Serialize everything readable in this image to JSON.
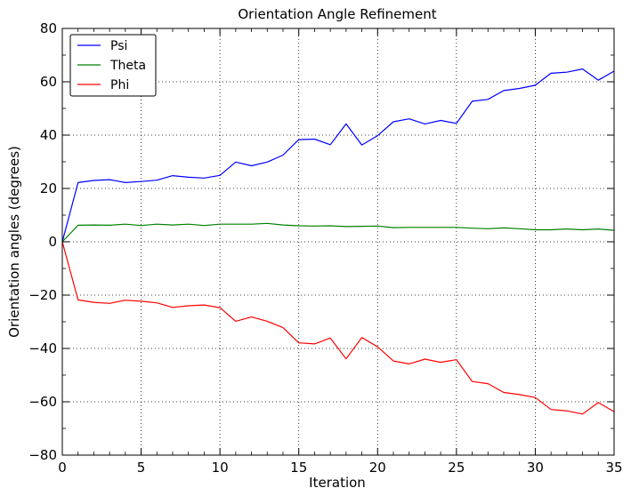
{
  "chart_data": {
    "type": "line",
    "title": "Orientation Angle Refinement",
    "xlabel": "Iteration",
    "ylabel": "Orientation angles (degrees)",
    "xlim": [
      0,
      35
    ],
    "ylim": [
      -80,
      80
    ],
    "xticks": [
      0,
      5,
      10,
      15,
      20,
      25,
      30,
      35
    ],
    "yticks": [
      -80,
      -60,
      -40,
      -20,
      0,
      20,
      40,
      60,
      80
    ],
    "grid": true,
    "legend_position": "top-left",
    "x": [
      0,
      1,
      2,
      3,
      4,
      5,
      6,
      7,
      8,
      9,
      10,
      11,
      12,
      13,
      14,
      15,
      16,
      17,
      18,
      19,
      20,
      21,
      22,
      23,
      24,
      25,
      26,
      27,
      28,
      29,
      30,
      31,
      32,
      33,
      34,
      35
    ],
    "series": [
      {
        "name": "Psi",
        "color": "#0000ff",
        "values": [
          0,
          22.2,
          23.0,
          23.3,
          22.2,
          22.6,
          23.1,
          24.8,
          24.2,
          23.9,
          24.9,
          29.9,
          28.5,
          29.9,
          32.5,
          38.3,
          38.5,
          36.4,
          44.2,
          36.3,
          39.8,
          45.0,
          46.1,
          44.2,
          45.5,
          44.4,
          52.7,
          53.4,
          56.7,
          57.5,
          58.7,
          63.2,
          63.6,
          64.8,
          60.6,
          64.0
        ]
      },
      {
        "name": "Theta",
        "color": "#008000",
        "values": [
          0,
          6.2,
          6.3,
          6.2,
          6.6,
          6.1,
          6.6,
          6.3,
          6.6,
          6.1,
          6.6,
          6.6,
          6.6,
          6.9,
          6.3,
          6.0,
          5.9,
          6.0,
          5.7,
          5.8,
          5.9,
          5.3,
          5.4,
          5.4,
          5.4,
          5.4,
          5.1,
          4.9,
          5.2,
          4.9,
          4.5,
          4.5,
          4.8,
          4.5,
          4.8,
          4.3
        ]
      },
      {
        "name": "Phi",
        "color": "#ff0000",
        "values": [
          0,
          -21.8,
          -22.7,
          -23.1,
          -21.9,
          -22.3,
          -22.9,
          -24.6,
          -24.0,
          -23.7,
          -24.7,
          -29.8,
          -28.2,
          -29.8,
          -32.2,
          -37.9,
          -38.3,
          -36.1,
          -43.9,
          -35.9,
          -39.4,
          -44.7,
          -45.8,
          -44.0,
          -45.2,
          -44.2,
          -52.4,
          -53.2,
          -56.5,
          -57.3,
          -58.4,
          -62.9,
          -63.4,
          -64.6,
          -60.3,
          -63.7
        ]
      }
    ]
  }
}
